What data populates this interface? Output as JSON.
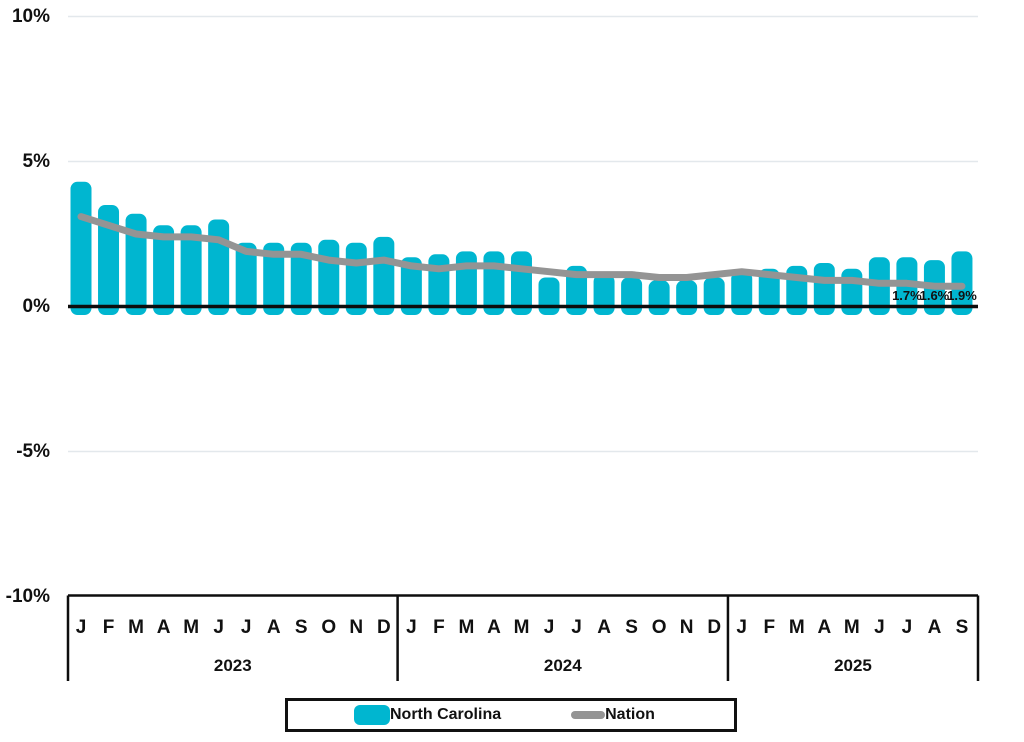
{
  "chart_data": {
    "type": "bar",
    "title": "",
    "ylabel": "",
    "xlabel": "",
    "grid": "horizontal-faint",
    "legend_position": "bottom",
    "y_axis": {
      "min": -10,
      "max": 10,
      "tick_step": 5,
      "ticks": [
        "10%",
        "5%",
        "0%",
        "-5%",
        "-10%"
      ]
    },
    "years": [
      {
        "label": "2023",
        "months": [
          "J",
          "F",
          "M",
          "A",
          "M",
          "J",
          "J",
          "A",
          "S",
          "O",
          "N",
          "D"
        ]
      },
      {
        "label": "2024",
        "months": [
          "J",
          "F",
          "M",
          "A",
          "M",
          "J",
          "J",
          "A",
          "S",
          "O",
          "N",
          "D"
        ]
      },
      {
        "label": "2025",
        "months": [
          "J",
          "F",
          "M",
          "A",
          "M",
          "J",
          "J",
          "A",
          "S"
        ]
      }
    ],
    "series": [
      {
        "name": "North Carolina",
        "type": "bar",
        "color": "#00B6D0",
        "values": [
          4.3,
          3.5,
          3.2,
          2.8,
          2.8,
          3.0,
          2.2,
          2.2,
          2.2,
          2.3,
          2.2,
          2.4,
          1.7,
          1.8,
          1.9,
          1.9,
          1.9,
          1.0,
          1.4,
          1.1,
          1.0,
          0.9,
          0.9,
          1.0,
          1.2,
          1.3,
          1.4,
          1.5,
          1.3,
          1.7,
          1.7,
          1.6,
          1.9
        ]
      },
      {
        "name": "Nation",
        "type": "line",
        "color": "#949494",
        "values": [
          3.1,
          2.8,
          2.5,
          2.4,
          2.4,
          2.3,
          1.9,
          1.8,
          1.8,
          1.6,
          1.5,
          1.6,
          1.4,
          1.3,
          1.4,
          1.4,
          1.3,
          1.2,
          1.1,
          1.1,
          1.1,
          1.0,
          1.0,
          1.1,
          1.2,
          1.1,
          1.0,
          0.9,
          0.9,
          0.8,
          0.8,
          0.7,
          0.7
        ]
      }
    ],
    "point_labels": [
      {
        "index": 30,
        "text": "1.7%"
      },
      {
        "index": 31,
        "text": "1.6%"
      },
      {
        "index": 32,
        "text": "1.9%"
      }
    ]
  },
  "legend": {
    "items": [
      {
        "label": "North Carolina",
        "color": "#00B6D0",
        "shape": "bar"
      },
      {
        "label": "Nation",
        "color": "#949494",
        "shape": "line"
      }
    ]
  }
}
